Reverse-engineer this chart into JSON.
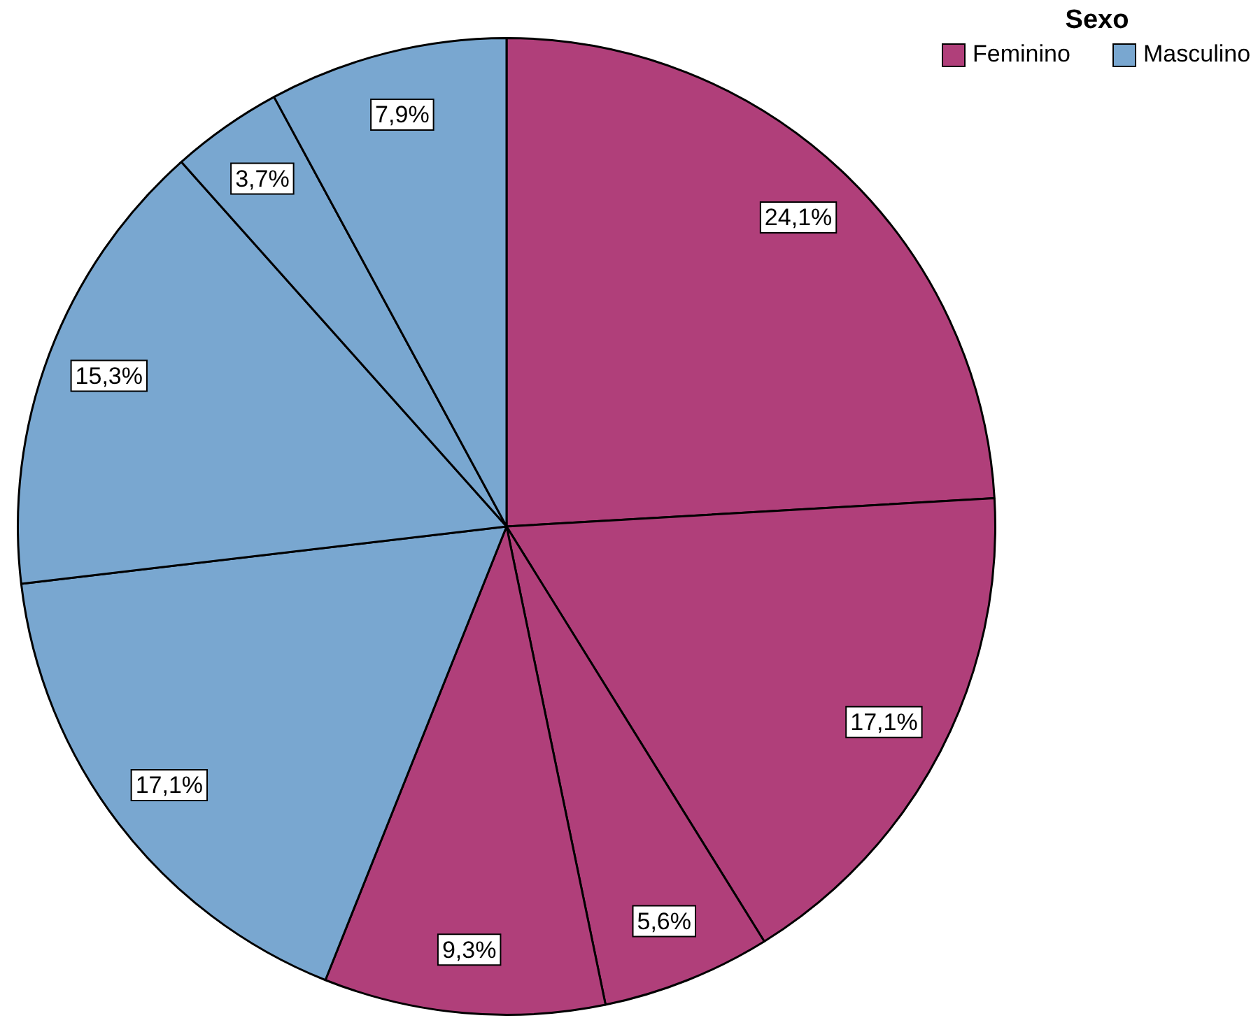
{
  "chart_data": {
    "type": "pie",
    "legend_title": "Sexo",
    "categories": [
      null,
      null,
      null,
      null,
      null,
      null,
      null,
      null
    ],
    "values": [
      24.1,
      17.1,
      5.6,
      9.3,
      17.1,
      15.3,
      3.7,
      7.9
    ],
    "colors": [
      "#b03f7a",
      "#b03f7a",
      "#b03f7a",
      "#b03f7a",
      "#79a7d0",
      "#79a7d0",
      "#79a7d0",
      "#79a7d0"
    ],
    "value_labels": [
      "24,1%",
      "17,1%",
      "5,6%",
      "9,3%",
      "17,1%",
      "15,3%",
      "3,7%",
      "7,9%"
    ],
    "annotations": [
      "Feminino",
      "Masculino"
    ]
  }
}
